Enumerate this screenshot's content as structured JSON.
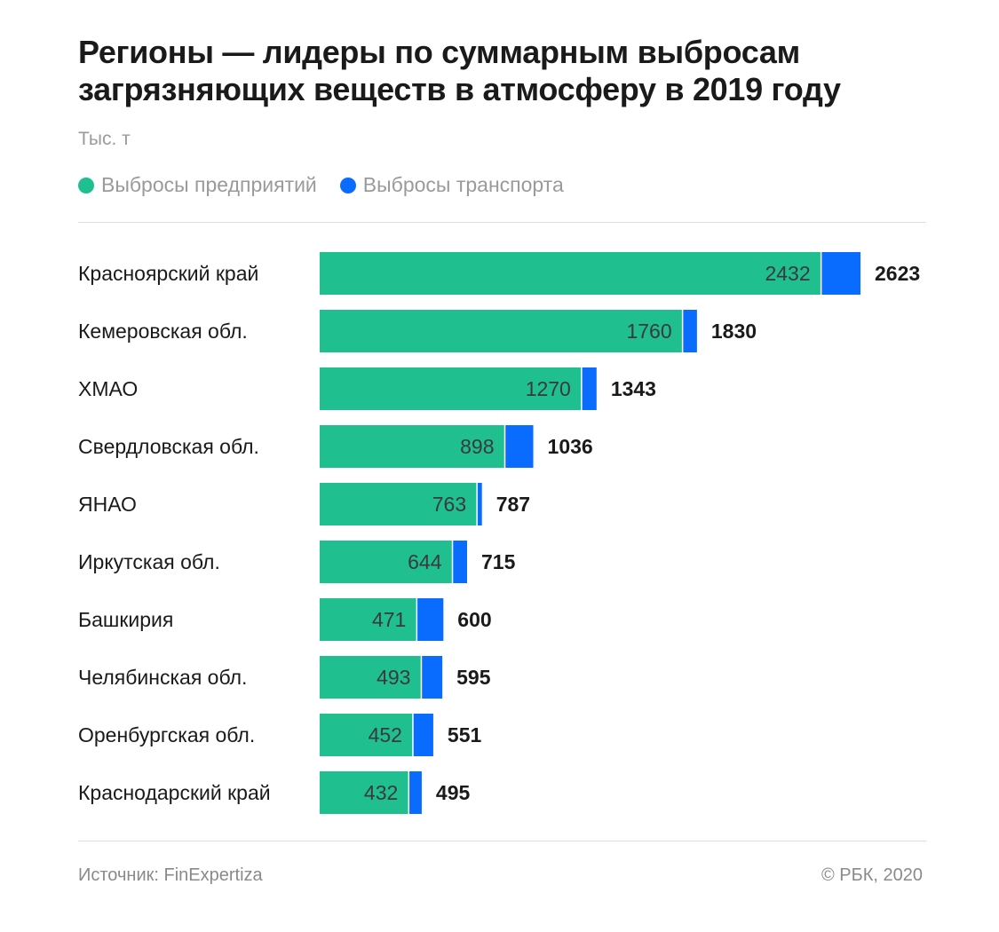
{
  "chart_data": {
    "type": "bar",
    "orientation": "horizontal",
    "stacked": true,
    "title": "Регионы — лидеры по суммарным выбросам загрязняющих веществ в атмосферу в 2019 году",
    "unit": "Тыс. т",
    "legend": {
      "placement": "top-left",
      "entries": [
        "Выбросы предприятий",
        "Выбросы транспорта"
      ]
    },
    "categories": [
      "Красноярский край",
      "Кемеровская обл.",
      "ХМАО",
      "Свердловская обл.",
      "ЯНАО",
      "Иркутская обл.",
      "Башкирия",
      "Челябинская обл.",
      "Оренбургская обл.",
      "Краснодарский край"
    ],
    "series": [
      {
        "name": "Выбросы предприятий",
        "color": "#1fbf8f",
        "values": [
          2432,
          1760,
          1270,
          898,
          763,
          644,
          471,
          493,
          452,
          432
        ]
      },
      {
        "name": "Выбросы транспорта",
        "color": "#0a6cff",
        "values": [
          191,
          70,
          73,
          138,
          24,
          71,
          129,
          102,
          99,
          63
        ]
      }
    ],
    "totals": [
      2623,
      1830,
      1343,
      1036,
      787,
      715,
      600,
      595,
      551,
      495
    ],
    "xlim": [
      0,
      2623
    ],
    "grid": false
  },
  "footer": {
    "source": "Источник: FinExpertiza",
    "copyright": "© РБК, 2020"
  }
}
